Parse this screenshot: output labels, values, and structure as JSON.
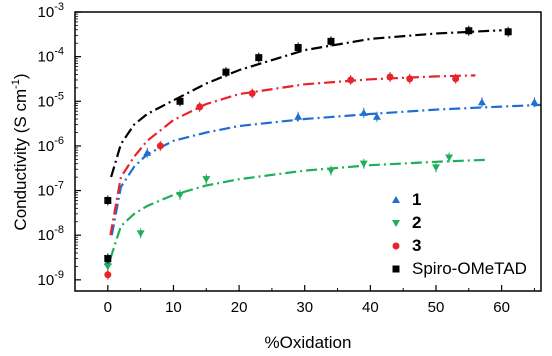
{
  "chart_data": {
    "type": "scatter",
    "xlabel": "%Oxidation",
    "ylabel": "Conductivity (S cm",
    "ylabel_sup": "-1",
    "ylabel_close": ")",
    "xlim": [
      -5,
      66
    ],
    "ylim_log10": [
      -9.25,
      -3
    ],
    "y_scale": "log",
    "x_ticks": [
      0,
      10,
      20,
      30,
      40,
      50,
      60
    ],
    "x_tick_labels": [
      "0",
      "10",
      "20",
      "30",
      "40",
      "50",
      "60"
    ],
    "y_ticks_exp": [
      -9,
      -8,
      -7,
      -6,
      -5,
      -4,
      -3
    ],
    "y_tick_base": "10",
    "y_tick_exps": [
      "-9",
      "-8",
      "-7",
      "-6",
      "-5",
      "-4",
      "-3"
    ],
    "grid": false,
    "legend_position": "bottom-right",
    "series": [
      {
        "name": "1",
        "color": "#1f6fd1",
        "marker": "triangle-up",
        "points": [
          [
            0,
            2.5e-09
          ],
          [
            6,
            7e-07
          ],
          [
            29,
            4.5e-06
          ],
          [
            39,
            5.5e-06
          ],
          [
            41,
            4.5e-06
          ],
          [
            57,
            9.5e-06
          ],
          [
            65,
            9.5e-06
          ]
        ],
        "fit": [
          [
            0.6,
            1e-08
          ],
          [
            2,
            1.2e-07
          ],
          [
            4,
            3.4e-07
          ],
          [
            6,
            6.5e-07
          ],
          [
            10,
            1.3e-06
          ],
          [
            15,
            2e-06
          ],
          [
            20,
            2.8e-06
          ],
          [
            30,
            4e-06
          ],
          [
            40,
            5.2e-06
          ],
          [
            50,
            6.5e-06
          ],
          [
            60,
            7.6e-06
          ],
          [
            66,
            8.3e-06
          ]
        ]
      },
      {
        "name": "2",
        "color": "#1fae5a",
        "marker": "triangle-down",
        "points": [
          [
            0,
            2e-09
          ],
          [
            0,
            3e-09
          ],
          [
            5,
            1.1e-08
          ],
          [
            11,
            8e-08
          ],
          [
            15,
            1.8e-07
          ],
          [
            34,
            2.8e-07
          ],
          [
            39,
            4e-07
          ],
          [
            50,
            3.3e-07
          ],
          [
            52,
            5.5e-07
          ]
        ],
        "fit": [
          [
            0.4,
            3e-09
          ],
          [
            2,
            1.6e-08
          ],
          [
            4,
            3e-08
          ],
          [
            6,
            4.5e-08
          ],
          [
            10,
            8e-08
          ],
          [
            15,
            1.3e-07
          ],
          [
            20,
            1.8e-07
          ],
          [
            30,
            2.8e-07
          ],
          [
            40,
            3.7e-07
          ],
          [
            50,
            4.4e-07
          ],
          [
            58,
            4.9e-07
          ]
        ]
      },
      {
        "name": "3",
        "color": "#e8232c",
        "marker": "circle",
        "points": [
          [
            0,
            1.3e-09
          ],
          [
            8,
            1e-06
          ],
          [
            14,
            7.5e-06
          ],
          [
            22,
            1.5e-05
          ],
          [
            37,
            3e-05
          ],
          [
            43,
            3.5e-05
          ],
          [
            46,
            3.2e-05
          ],
          [
            53,
            3.2e-05
          ]
        ],
        "fit": [
          [
            0.4,
            1e-08
          ],
          [
            2,
            2e-07
          ],
          [
            4,
            5.7e-07
          ],
          [
            6,
            1.3e-06
          ],
          [
            10,
            3.8e-06
          ],
          [
            15,
            8.7e-06
          ],
          [
            20,
            1.45e-05
          ],
          [
            30,
            2.4e-05
          ],
          [
            40,
            3.1e-05
          ],
          [
            50,
            3.6e-05
          ],
          [
            56,
            3.8e-05
          ]
        ]
      },
      {
        "name": "Spiro-OMeTAD",
        "color": "#000000",
        "marker": "square",
        "points": [
          [
            0,
            6e-08
          ],
          [
            0,
            3e-09
          ],
          [
            11,
            1e-05
          ],
          [
            18,
            4.5e-05
          ],
          [
            23,
            9.5e-05
          ],
          [
            29,
            0.00016
          ],
          [
            34,
            0.00022
          ],
          [
            55,
            0.00038
          ],
          [
            61,
            0.00036
          ]
        ],
        "fit": [
          [
            0.5,
            2e-07
          ],
          [
            2,
            1.1e-06
          ],
          [
            4,
            3e-06
          ],
          [
            6,
            5.2e-06
          ],
          [
            10,
            1.05e-05
          ],
          [
            15,
            2.5e-05
          ],
          [
            20,
            5e-05
          ],
          [
            30,
            0.00014
          ],
          [
            40,
            0.00025
          ],
          [
            50,
            0.00033
          ],
          [
            60,
            0.00039
          ]
        ]
      }
    ]
  }
}
